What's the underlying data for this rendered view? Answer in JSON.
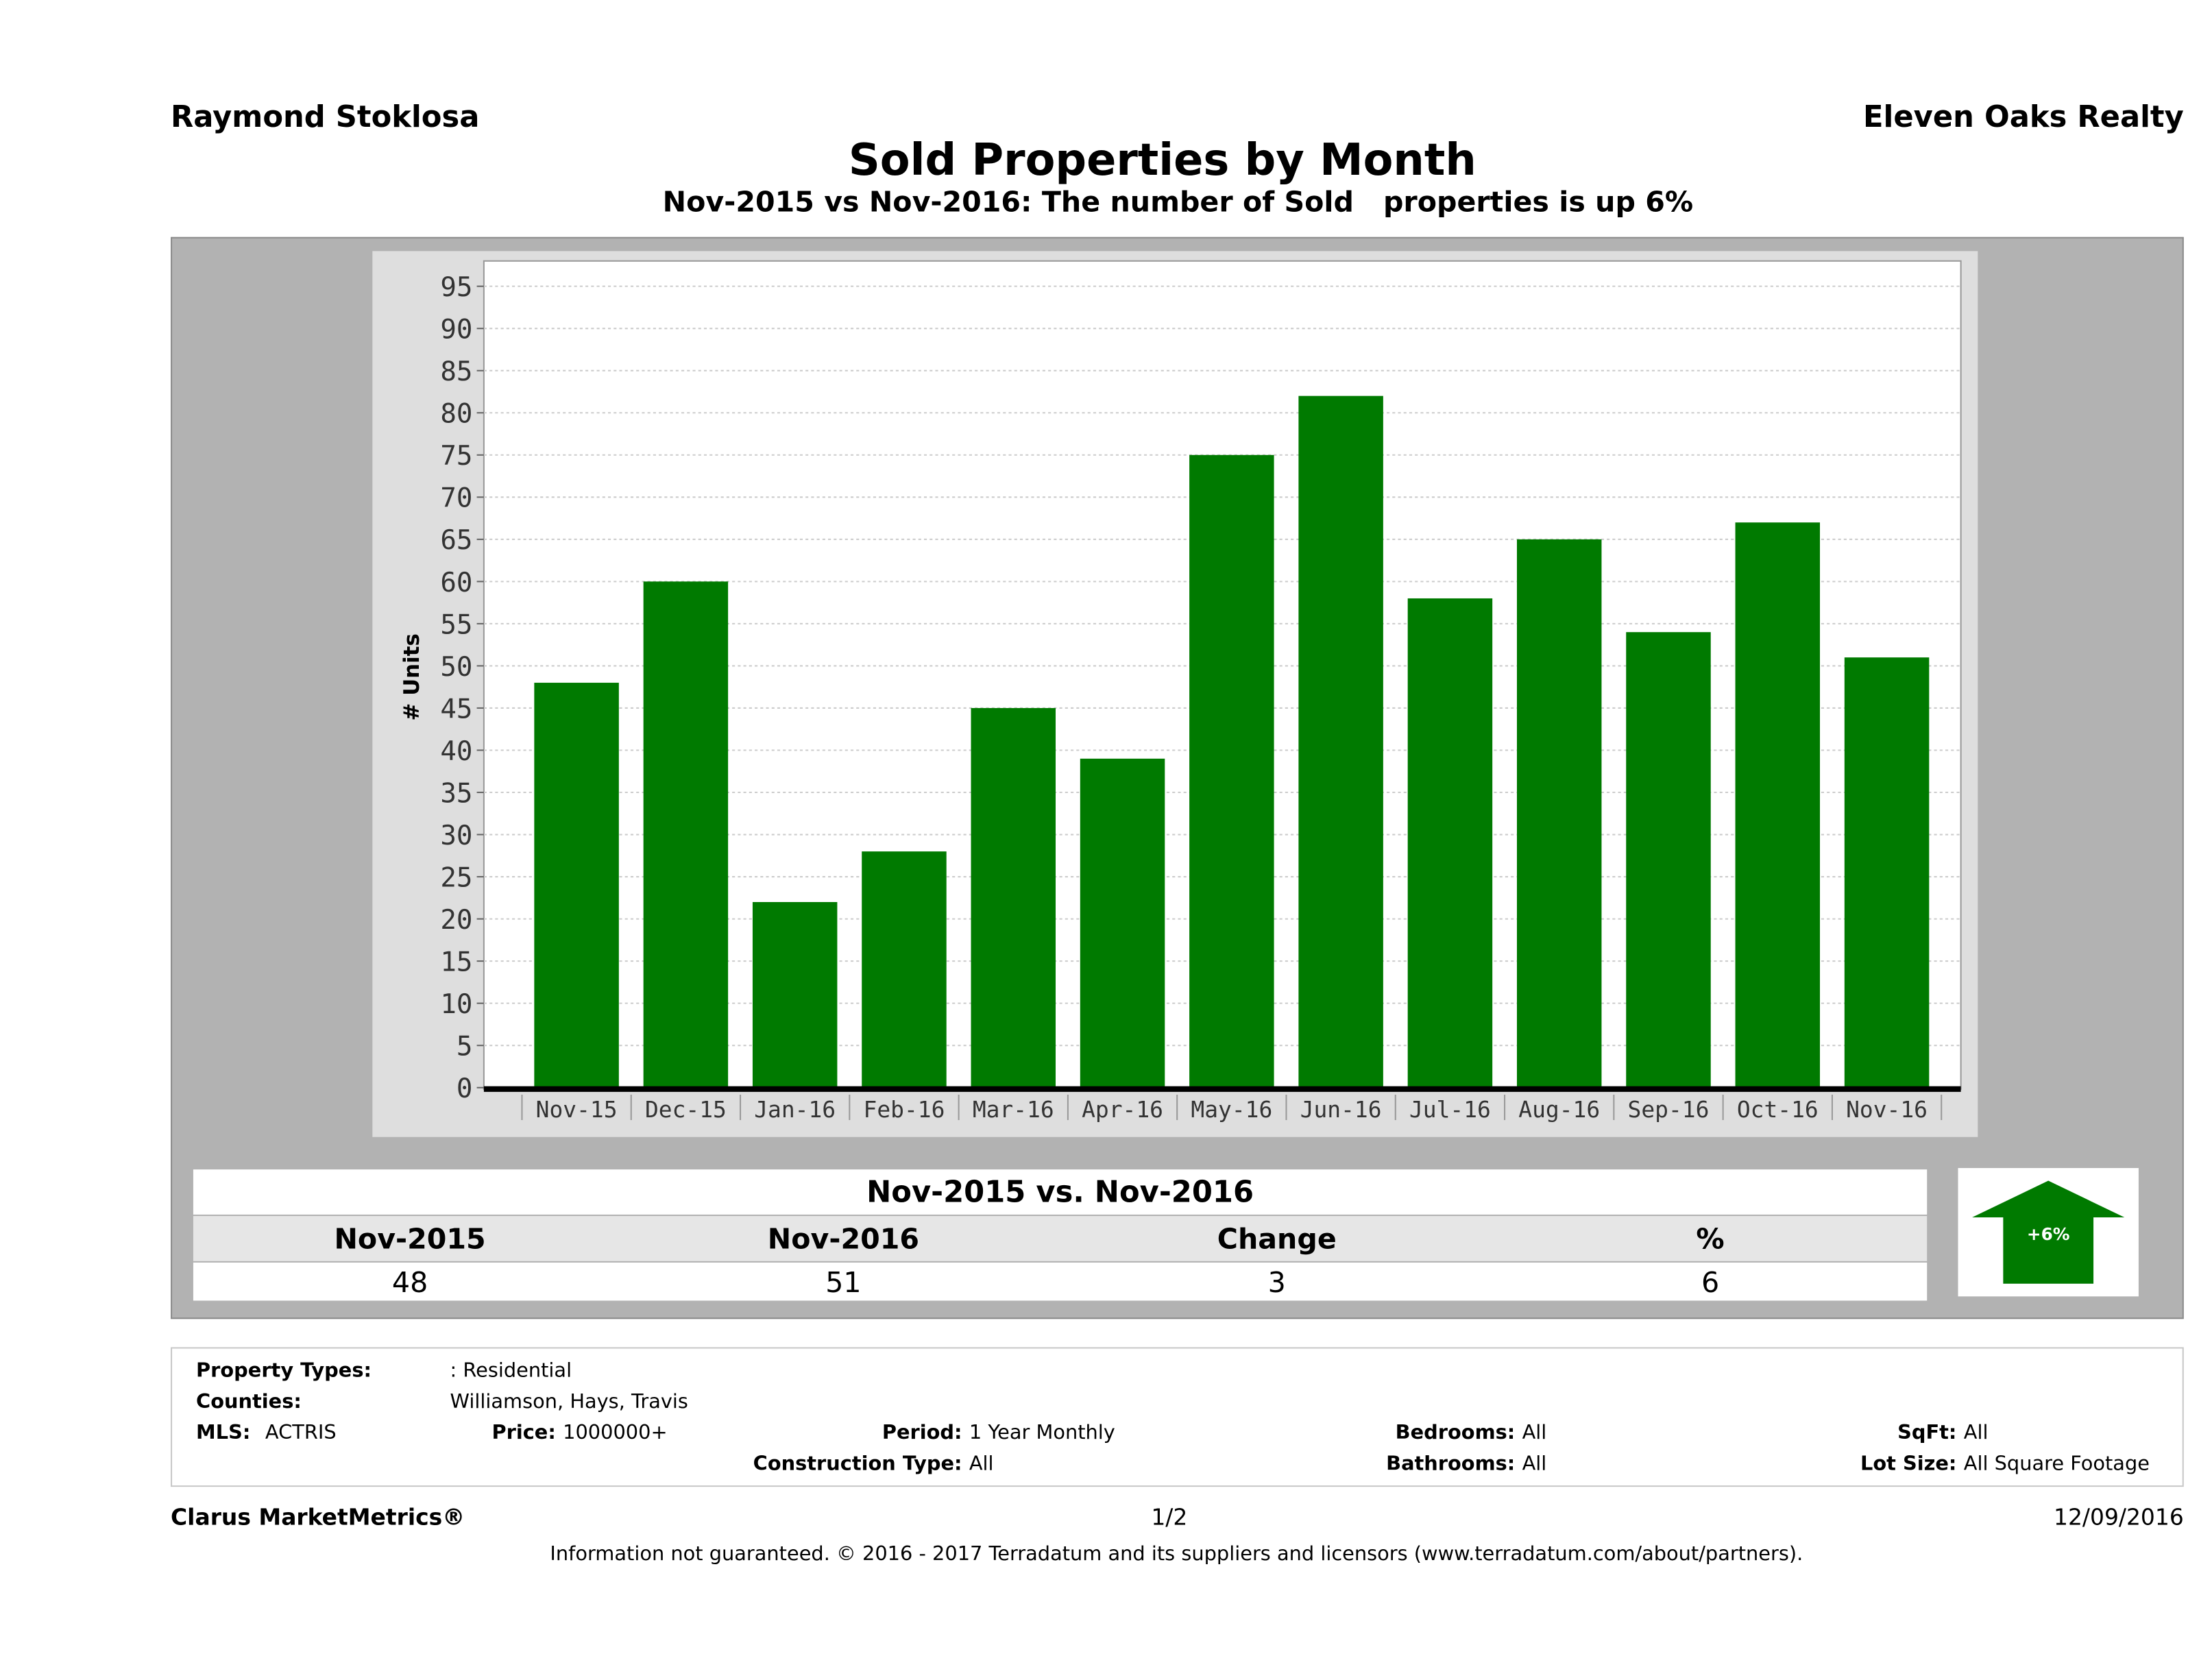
{
  "header": {
    "agent": "Raymond Stoklosa",
    "broker": "Eleven Oaks Realty",
    "title": "Sold Properties by Month",
    "subtitle": "Nov-2015 vs Nov-2016: The number of Sold   properties is up 6%"
  },
  "chart_data": {
    "type": "bar",
    "title": "Sold Properties by Month",
    "xlabel": "",
    "ylabel": "# Units",
    "ylim": [
      0,
      98
    ],
    "yticks": [
      0,
      5,
      10,
      15,
      20,
      25,
      30,
      35,
      40,
      45,
      50,
      55,
      60,
      65,
      70,
      75,
      80,
      85,
      90,
      95
    ],
    "grid": true,
    "categories": [
      "Nov-15",
      "Dec-15",
      "Jan-16",
      "Feb-16",
      "Mar-16",
      "Apr-16",
      "May-16",
      "Jun-16",
      "Jul-16",
      "Aug-16",
      "Sep-16",
      "Oct-16",
      "Nov-16"
    ],
    "values": [
      48,
      60,
      22,
      28,
      45,
      39,
      75,
      82,
      58,
      65,
      54,
      67,
      51
    ],
    "bar_color": "#007a00"
  },
  "summary": {
    "title": "Nov-2015 vs. Nov-2016",
    "headers": [
      "Nov-2015",
      "Nov-2016",
      "Change",
      "%"
    ],
    "values": [
      "48",
      "51",
      "3",
      "6"
    ],
    "badge": "+6%"
  },
  "info": {
    "property_types_label": "Property Types:",
    "property_types": ": Residential",
    "counties_label": "Counties:",
    "counties": "Williamson, Hays, Travis",
    "mls_label": "MLS:",
    "mls": "ACTRIS",
    "price_label": "Price:",
    "price": "1000000+",
    "period_label": "Period:",
    "period": "1 Year Monthly",
    "bedrooms_label": "Bedrooms:",
    "bedrooms": "All",
    "sqft_label": "SqFt:",
    "sqft": "All",
    "construction_label": "Construction Type:",
    "construction": "All",
    "bathrooms_label": "Bathrooms:",
    "bathrooms": "All",
    "lot_label": "Lot Size:",
    "lot": "All Square Footage"
  },
  "footer": {
    "brand": "Clarus MarketMetrics®",
    "page": "1/2",
    "date": "12/09/2016",
    "disclaimer": "Information not guaranteed. © 2016 - 2017 Terradatum and its suppliers and licensors (www.terradatum.com/about/partners)."
  }
}
